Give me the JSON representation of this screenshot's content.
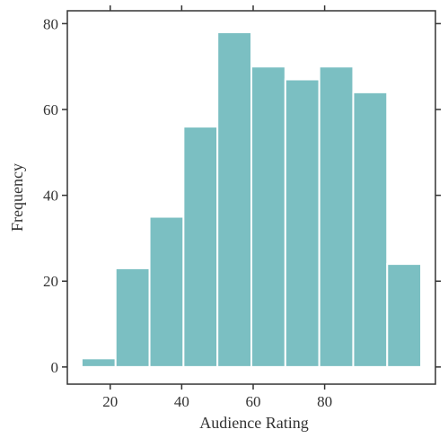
{
  "chart_data": {
    "type": "bar",
    "title": "",
    "xlabel": "Audience Rating",
    "ylabel": "Frequency",
    "bins": [
      {
        "start": 12,
        "end": 21.5,
        "value": 2
      },
      {
        "start": 21.5,
        "end": 31,
        "value": 23
      },
      {
        "start": 31,
        "end": 40.5,
        "value": 35
      },
      {
        "start": 40.5,
        "end": 50,
        "value": 56
      },
      {
        "start": 50,
        "end": 59.5,
        "value": 78
      },
      {
        "start": 59.5,
        "end": 69,
        "value": 70
      },
      {
        "start": 69,
        "end": 78.5,
        "value": 67
      },
      {
        "start": 78.5,
        "end": 88,
        "value": 70
      },
      {
        "start": 88,
        "end": 97.5,
        "value": 64
      },
      {
        "start": 97.5,
        "end": 107,
        "value": 24
      }
    ],
    "xlim": [
      8,
      111
    ],
    "ylim": [
      -4,
      83
    ],
    "x_ticks": [
      20,
      40,
      60,
      80
    ],
    "y_ticks": [
      0,
      20,
      40,
      60,
      80
    ],
    "x_tick_labels": [
      "20",
      "40",
      "60",
      "80"
    ],
    "y_tick_labels": [
      "0",
      "20",
      "40",
      "60",
      "80"
    ],
    "grid": false,
    "bar_color": "#7bbfc2",
    "bar_edge_color": "#ffffff",
    "axis_color": "#333333"
  }
}
